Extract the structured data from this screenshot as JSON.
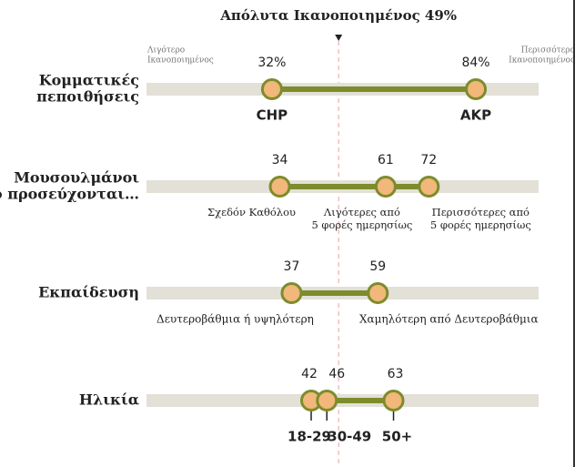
{
  "chart_data": {
    "type": "dot",
    "xlim": [
      0,
      100
    ],
    "reference_line": {
      "value": 49,
      "label": "Απόλυτα Ικανοποιημένος 49%"
    },
    "left_label": [
      "Λιγότερο",
      "Ικανοποιημένος"
    ],
    "right_label": [
      "Περισσότερο",
      "Ικανοποιημένος"
    ],
    "bar_color": "#e3e0d8",
    "line_color": "#7d8c2c",
    "dot_color": "#f2b77a",
    "groups": [
      {
        "name": [
          "Κομματικές",
          "πεποιθήσεις"
        ],
        "values": [
          32,
          84
        ],
        "value_labels": [
          "32%",
          "84%"
        ],
        "categories": [
          [
            "CHP"
          ],
          [
            "AKP"
          ]
        ]
      },
      {
        "name": [
          "Μουσουλμάνοι",
          "που προσεύχονται…"
        ],
        "values": [
          34,
          61,
          72
        ],
        "categories": [
          [
            "Σχεδόν Καθόλου"
          ],
          [
            "Λιγότερες από",
            "5 φορές ημερησίως"
          ],
          [
            "Περισσότερες από",
            "5 φορές ημερησίως"
          ]
        ]
      },
      {
        "name": [
          "Εκπαίδευση"
        ],
        "values": [
          37,
          59
        ],
        "categories": [
          [
            "Δευτεροβάθμια ή υψηλότερη"
          ],
          [
            "Χαμηλότερη από Δευτεροβάθμια"
          ]
        ]
      },
      {
        "name": [
          "Ηλικία"
        ],
        "values": [
          42,
          46,
          63
        ],
        "categories": [
          [
            "18-29"
          ],
          [
            "30-49"
          ],
          [
            "50+"
          ]
        ]
      }
    ]
  }
}
